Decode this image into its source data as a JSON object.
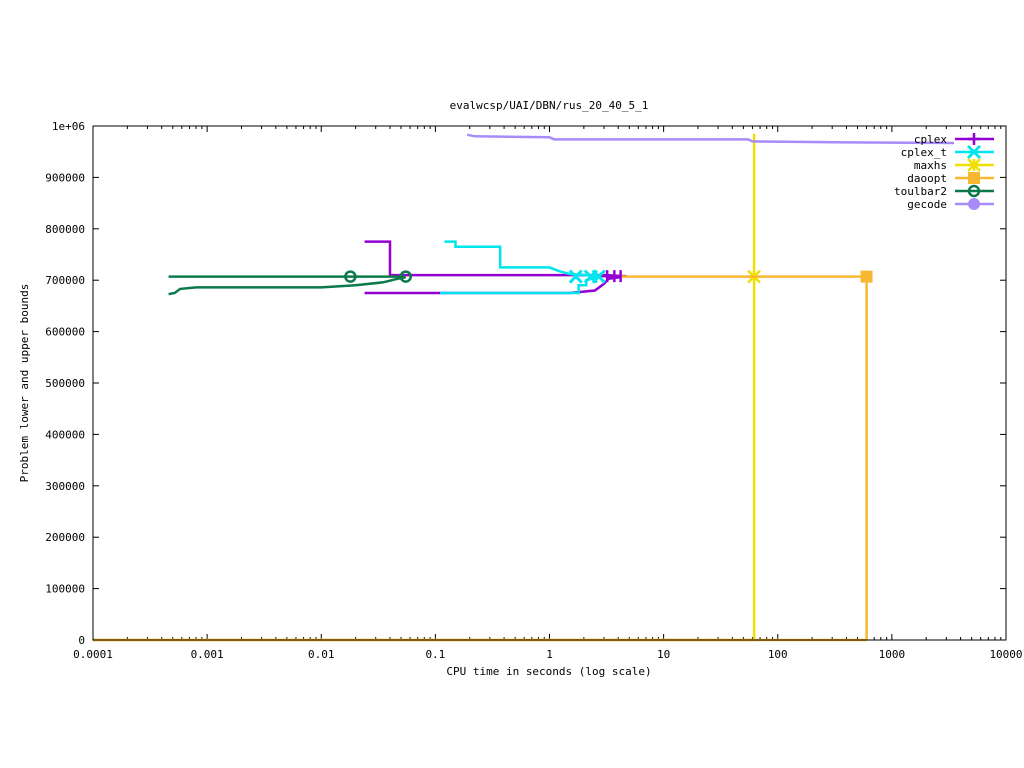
{
  "chart_data": {
    "type": "line",
    "title": "evalwcsp/UAI/DBN/rus_20_40_5_1",
    "xlabel": "CPU time in seconds (log scale)",
    "ylabel": "Problem lower and upper bounds",
    "x_scale": "log",
    "xlim": [
      0.0001,
      10000
    ],
    "ylim": [
      0,
      1000000
    ],
    "x_ticks": [
      {
        "value": 0.0001,
        "label": "0.0001"
      },
      {
        "value": 0.001,
        "label": "0.001"
      },
      {
        "value": 0.01,
        "label": "0.01"
      },
      {
        "value": 0.1,
        "label": "0.1"
      },
      {
        "value": 1,
        "label": "1"
      },
      {
        "value": 10,
        "label": "10"
      },
      {
        "value": 100,
        "label": "100"
      },
      {
        "value": 1000,
        "label": "1000"
      },
      {
        "value": 10000,
        "label": "10000"
      }
    ],
    "y_ticks": [
      {
        "value": 0,
        "label": "0"
      },
      {
        "value": 100000,
        "label": "100000"
      },
      {
        "value": 200000,
        "label": "200000"
      },
      {
        "value": 300000,
        "label": "300000"
      },
      {
        "value": 400000,
        "label": "400000"
      },
      {
        "value": 500000,
        "label": "500000"
      },
      {
        "value": 600000,
        "label": "600000"
      },
      {
        "value": 700000,
        "label": "700000"
      },
      {
        "value": 800000,
        "label": "800000"
      },
      {
        "value": 900000,
        "label": "900000"
      },
      {
        "value": 1000000,
        "label": "1e+06"
      }
    ],
    "grid": false,
    "legend_position": "top-right",
    "series": [
      {
        "name": "cplex",
        "color": "#9400d3",
        "marker": "plus",
        "lines": [
          [
            [
              0.024,
              775000
            ],
            [
              0.04,
              775000
            ],
            [
              0.04,
              710000
            ],
            [
              3.2,
              710000
            ],
            [
              4.3,
              708000
            ]
          ],
          [
            [
              0.024,
              675000
            ],
            [
              0.11,
              675000
            ],
            [
              1.5,
              675000
            ],
            [
              2.5,
              680000
            ],
            [
              3.0,
              693000
            ],
            [
              3.3,
              703000
            ],
            [
              4.2,
              706000
            ]
          ]
        ],
        "markers": [
          [
            3.2,
            708000
          ],
          [
            3.7,
            708000
          ],
          [
            4.2,
            708000
          ]
        ]
      },
      {
        "name": "cplex_t",
        "color": "#00e5ee",
        "marker": "x",
        "lines": [
          [
            [
              0.12,
              775000
            ],
            [
              0.15,
              775000
            ],
            [
              0.15,
              765000
            ],
            [
              0.37,
              765000
            ],
            [
              0.37,
              725000
            ],
            [
              1.0,
              725000
            ],
            [
              1.2,
              718000
            ],
            [
              1.5,
              712000
            ],
            [
              2.7,
              708000
            ]
          ],
          [
            [
              0.11,
              675000
            ],
            [
              1.8,
              675000
            ],
            [
              1.8,
              690000
            ],
            [
              2.1,
              690000
            ],
            [
              2.1,
              700000
            ],
            [
              2.7,
              706000
            ]
          ]
        ],
        "markers": [
          [
            1.7,
            707000
          ],
          [
            2.3,
            707000
          ],
          [
            2.7,
            707000
          ]
        ]
      },
      {
        "name": "maxhs",
        "color": "#f0e000",
        "marker": "star",
        "lines": [
          [
            [
              0.0001,
              0
            ],
            [
              62,
              0
            ],
            [
              62,
              985000
            ]
          ],
          [
            [
              62,
              707000
            ],
            [
              62,
              707000
            ]
          ]
        ],
        "markers": [
          [
            62,
            707000
          ]
        ]
      },
      {
        "name": "daoopt",
        "color": "#f7b731",
        "marker": "square",
        "lines": [
          [
            [
              4.3,
              707000
            ],
            [
              600,
              707000
            ],
            [
              600,
              0
            ]
          ],
          [
            [
              0.0001,
              0
            ],
            [
              600,
              0
            ]
          ]
        ],
        "markers": [
          [
            600,
            707000
          ]
        ]
      },
      {
        "name": "toulbar2",
        "color": "#0b7a4a",
        "marker": "circle-open",
        "lines": [
          [
            [
              0.00046,
              707000
            ],
            [
              0.055,
              707000
            ]
          ],
          [
            [
              0.00046,
              673000
            ],
            [
              0.00052,
              675000
            ],
            [
              0.00058,
              683000
            ],
            [
              0.0008,
              686000
            ],
            [
              0.01,
              686000
            ],
            [
              0.02,
              690000
            ],
            [
              0.035,
              696000
            ],
            [
              0.045,
              702000
            ],
            [
              0.055,
              706000
            ]
          ]
        ],
        "markers": [
          [
            0.018,
            707000
          ],
          [
            0.055,
            707000
          ]
        ]
      },
      {
        "name": "gecode",
        "color": "#a78bfa",
        "marker": "circle-filled",
        "lines": [
          [
            [
              0.19,
              983000
            ],
            [
              0.22,
              980000
            ],
            [
              1.0,
              978000
            ],
            [
              1.1,
              974000
            ],
            [
              55,
              974000
            ],
            [
              60,
              970000
            ],
            [
              400,
              968000
            ],
            [
              3500,
              967000
            ]
          ]
        ],
        "markers": []
      }
    ]
  }
}
